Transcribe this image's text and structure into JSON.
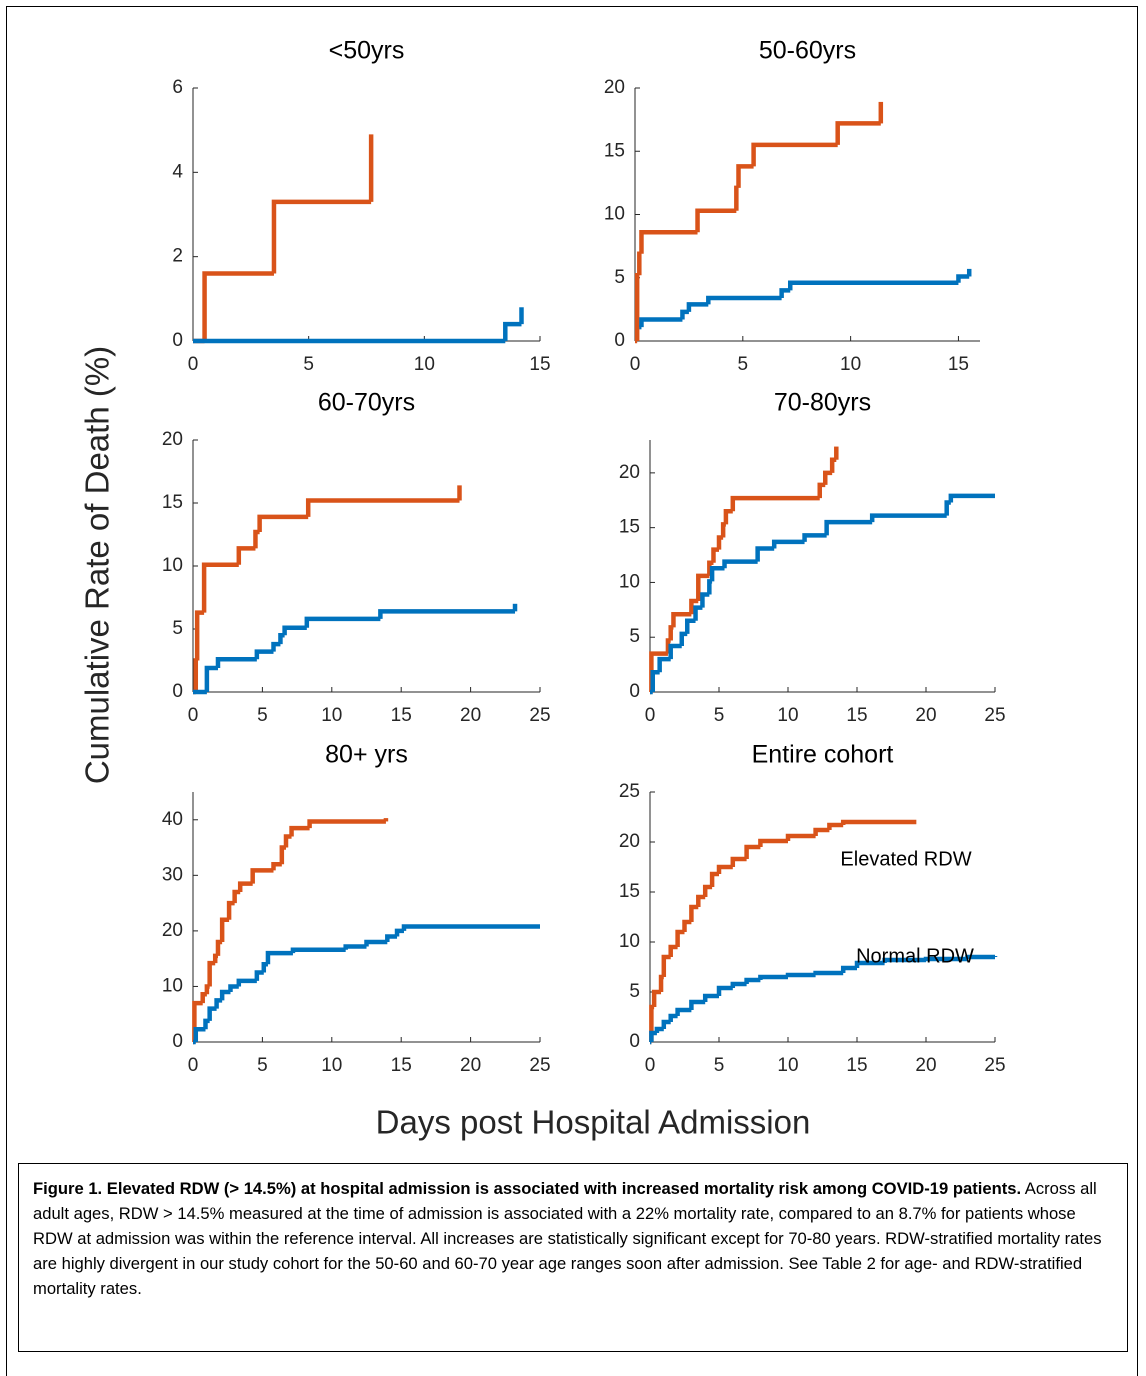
{
  "figure": {
    "ylabel": "Cumulative Rate of Death (%)",
    "xlabel": "Days post Hospital Admission",
    "caption": {
      "bold": "Figure 1.  Elevated RDW (> 14.5%) at hospital admission is associated with increased mortality risk among COVID-19 patients.",
      "text": "  Across all adult ages, RDW > 14.5% measured at the time of admission is associated with a 22% mortality rate, compared to an 8.7% for patients whose RDW at admission was within the reference interval.  All increases are statistically significant except for 70-80 years.  RDW-stratified mortality rates are highly divergent in our study cohort for the 50-60 and 60-70 year age ranges soon after admission.  See Table 2 for age- and RDW-stratified mortality rates."
    }
  },
  "chart_data": [
    {
      "type": "step",
      "title": "<50yrs",
      "xlim": [
        0,
        15
      ],
      "xticks": [
        0,
        5,
        10,
        15
      ],
      "ylim": [
        0,
        6
      ],
      "yticks": [
        0,
        2,
        4,
        6
      ],
      "series": [
        {
          "color": "#d95319",
          "x": [
            0,
            0.5,
            3.5,
            7.7
          ],
          "values": [
            0,
            1.6,
            3.3,
            4.9
          ]
        },
        {
          "color": "#0072bd",
          "x": [
            0,
            13.5,
            14.2
          ],
          "values": [
            0,
            0.4,
            0.8
          ]
        }
      ]
    },
    {
      "type": "step",
      "title": "50-60yrs",
      "xlim": [
        0,
        16
      ],
      "xticks": [
        0,
        5,
        10,
        15
      ],
      "ylim": [
        0,
        20
      ],
      "yticks": [
        0,
        5,
        10,
        15,
        20
      ],
      "series": [
        {
          "color": "#d95319",
          "x": [
            0,
            0.1,
            0.2,
            0.3,
            2.9,
            4.7,
            4.8,
            5.5,
            9.4,
            11.4
          ],
          "values": [
            0,
            5.2,
            6.9,
            8.6,
            10.3,
            12.1,
            13.8,
            15.5,
            17.2,
            18.9
          ]
        },
        {
          "color": "#0072bd",
          "x": [
            0.2,
            0.3,
            2.2,
            2.5,
            3.4,
            6.8,
            7.2,
            15,
            15.5
          ],
          "values": [
            1.1,
            1.7,
            2.3,
            2.9,
            3.4,
            4.0,
            4.6,
            5.1,
            5.7
          ]
        }
      ]
    },
    {
      "type": "step",
      "title": "60-70yrs",
      "xlim": [
        0,
        25
      ],
      "xticks": [
        0,
        5,
        10,
        15,
        20,
        25
      ],
      "ylim": [
        0,
        20
      ],
      "yticks": [
        0,
        5,
        10,
        15,
        20
      ],
      "series": [
        {
          "color": "#d95319",
          "x": [
            0,
            0.2,
            0.3,
            0.8,
            3.3,
            4.5,
            4.8,
            8.3,
            19.2
          ],
          "values": [
            0,
            2.5,
            6.3,
            10.1,
            11.4,
            12.7,
            13.9,
            15.2,
            16.4
          ]
        },
        {
          "color": "#0072bd",
          "x": [
            0,
            1.0,
            1.8,
            4.6,
            5.8,
            6.3,
            6.6,
            8.2,
            13.5,
            23.2
          ],
          "values": [
            0,
            1.9,
            2.6,
            3.2,
            3.8,
            4.5,
            5.1,
            5.8,
            6.4,
            7.0
          ]
        }
      ]
    },
    {
      "type": "step",
      "title": "70-80yrs",
      "xlim": [
        0,
        25
      ],
      "xticks": [
        0,
        5,
        10,
        15,
        20,
        25
      ],
      "ylim": [
        0,
        23
      ],
      "yticks": [
        0,
        5,
        10,
        15,
        20
      ],
      "series": [
        {
          "color": "#d95319",
          "x": [
            0,
            0.1,
            1.3,
            1.5,
            1.7,
            3.0,
            3.5,
            4.3,
            4.6,
            5.0,
            5.3,
            5.5,
            6.0,
            12.3,
            12.7,
            13.2,
            13.5
          ],
          "values": [
            0,
            3.5,
            4.7,
            5.9,
            7.1,
            8.3,
            10.6,
            11.8,
            13.0,
            14.1,
            15.3,
            16.5,
            17.7,
            18.9,
            20.0,
            21.2,
            22.4
          ]
        },
        {
          "color": "#0072bd",
          "x": [
            0,
            0.2,
            0.7,
            1.5,
            2.3,
            2.7,
            3.3,
            3.8,
            4.3,
            4.5,
            5.4,
            7.8,
            9.0,
            11.2,
            12.8,
            16.1,
            21.5,
            21.8,
            25
          ],
          "values": [
            0,
            1.8,
            3.0,
            4.2,
            5.3,
            6.5,
            7.7,
            8.9,
            10.1,
            11.3,
            11.9,
            13.1,
            13.7,
            14.3,
            15.5,
            16.1,
            17.3,
            17.9,
            17.9
          ]
        }
      ]
    },
    {
      "type": "step",
      "title": "80+ yrs",
      "xlim": [
        0,
        25
      ],
      "xticks": [
        0,
        5,
        10,
        15,
        20,
        25
      ],
      "ylim": [
        0,
        45
      ],
      "yticks": [
        0,
        10,
        20,
        30,
        40
      ],
      "series": [
        {
          "color": "#d95319",
          "x": [
            0,
            0.1,
            0.7,
            1.0,
            1.2,
            1.6,
            1.8,
            2.1,
            2.6,
            3.0,
            3.4,
            4.3,
            5.8,
            6.4,
            6.7,
            7.1,
            8.4,
            13.9
          ],
          "values": [
            0,
            7,
            8.6,
            10,
            14.2,
            15.5,
            18,
            22,
            25,
            27,
            28.5,
            30.9,
            32,
            35,
            37,
            38.5,
            39.7,
            40.3
          ]
        },
        {
          "color": "#0072bd",
          "x": [
            0,
            0.2,
            0.9,
            1.2,
            1.7,
            2.1,
            2.7,
            3.3,
            4.6,
            5.1,
            5.4,
            7.2,
            11,
            12.5,
            14,
            14.7,
            15.2,
            25
          ],
          "values": [
            0,
            2.3,
            3.8,
            6,
            7.5,
            9,
            10,
            11,
            12.5,
            14,
            16,
            16.6,
            17.2,
            18,
            19,
            20,
            20.8,
            20.8
          ]
        }
      ]
    },
    {
      "type": "step",
      "title": "Entire cohort",
      "xlim": [
        0,
        25
      ],
      "xticks": [
        0,
        5,
        10,
        15,
        20,
        25
      ],
      "ylim": [
        0,
        25
      ],
      "yticks": [
        0,
        5,
        10,
        15,
        20,
        25
      ],
      "annotations": [
        "Elevated RDW",
        "Normal RDW"
      ],
      "series": [
        {
          "color": "#d95319",
          "x": [
            0,
            0.1,
            0.3,
            0.8,
            1.0,
            1.5,
            2,
            2.5,
            3,
            3.5,
            4,
            4.5,
            5,
            6,
            7,
            8,
            10,
            12,
            13,
            14,
            19.3
          ],
          "values": [
            0,
            3.5,
            5,
            6.5,
            8.5,
            9.5,
            11,
            12,
            13.5,
            14.5,
            15.5,
            16.8,
            17.5,
            18.3,
            19.5,
            20.1,
            20.6,
            21.2,
            21.7,
            22,
            22
          ]
        },
        {
          "color": "#0072bd",
          "x": [
            0,
            0.1,
            0.5,
            1,
            1.5,
            2,
            3,
            4,
            5,
            6,
            7,
            8,
            10,
            12,
            14,
            15,
            17,
            20,
            23,
            25
          ],
          "values": [
            0,
            0.9,
            1.3,
            2,
            2.6,
            3.2,
            4,
            4.6,
            5.4,
            5.8,
            6.2,
            6.5,
            6.7,
            6.9,
            7.4,
            7.9,
            8.2,
            8.3,
            8.5,
            8.6
          ]
        }
      ]
    }
  ]
}
